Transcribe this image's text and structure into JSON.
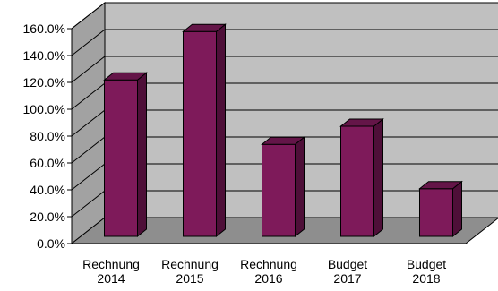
{
  "chart_data": {
    "type": "bar",
    "categories": [
      [
        "Rechnung",
        "2014"
      ],
      [
        "Rechnung",
        "2015"
      ],
      [
        "Rechnung",
        "2016"
      ],
      [
        "Budget",
        "2017"
      ],
      [
        "Budget",
        "2018"
      ]
    ],
    "values": [
      116.5,
      152.5,
      68.5,
      82.0,
      35.5
    ],
    "ylim": [
      0,
      160
    ],
    "yticks": [
      "0.0%",
      "20.0%",
      "40.0%",
      "60.0%",
      "80.0%",
      "100.0%",
      "120.0%",
      "140.0%",
      "160.0%"
    ],
    "grid": true,
    "legend": "none",
    "style": "3d-column"
  },
  "colors": {
    "bar_front": "#7e1a5a",
    "bar_side": "#4e0f38",
    "bar_top": "#641548",
    "back_wall": "#c0c0c0",
    "side_wall": "#a2a2a2",
    "floor": "#8e8e8e",
    "grid": "#000000",
    "outline": "#000000"
  }
}
